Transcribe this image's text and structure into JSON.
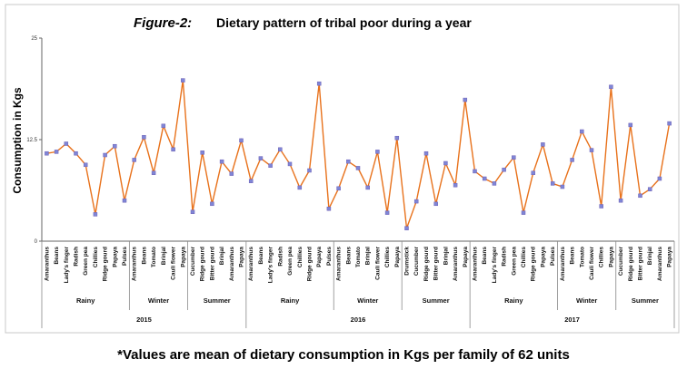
{
  "figure_label": "Figure-2:",
  "title": "Dietary pattern of tribal poor during a year",
  "footnote": "*Values are mean of dietary consumption in Kgs per family of 62 units",
  "colors": {
    "line": "#e8721c",
    "marker": "#7f86d6"
  },
  "chart_data": {
    "type": "line",
    "title": "Dietary pattern of tribal poor during a year",
    "ylabel": "Consumption in Kgs",
    "xlabel": "",
    "ylim": [
      0,
      25
    ],
    "yticks": [
      0,
      12.5,
      25
    ],
    "ytick_labels": [
      "0",
      "12.5",
      "25"
    ],
    "grid": false,
    "legend": "none",
    "years": [
      {
        "year": "2015",
        "seasons": [
          {
            "name": "Rainy",
            "items": [
              "Amaranthus",
              "Beans",
              "Lady's finger",
              "Radish",
              "Green pea",
              "Chillies",
              "Ridge gourd",
              "Papaya",
              "Pulses"
            ],
            "values": [
              10.8,
              11.0,
              12.0,
              10.8,
              9.4,
              3.3,
              10.6,
              11.7,
              5.0
            ]
          },
          {
            "name": "Winter",
            "items": [
              "Amaranthus",
              "Beans",
              "Tomato",
              "Brinjal",
              "Cauli flower",
              "Papaya"
            ],
            "values": [
              10.0,
              12.8,
              8.4,
              14.2,
              11.3,
              19.8
            ]
          },
          {
            "name": "Summer",
            "items": [
              "Cucumber",
              "Ridge gourd",
              "Bitter gourd",
              "Brinjal",
              "Amaranthus",
              "Papaya"
            ],
            "values": [
              3.6,
              10.9,
              4.6,
              9.8,
              8.3,
              12.4
            ]
          }
        ]
      },
      {
        "year": "2016",
        "seasons": [
          {
            "name": "Rainy",
            "items": [
              "Amaranthus",
              "Beans",
              "Lady's finger",
              "Radish",
              "Green pea",
              "Chillies",
              "Ridge gourd",
              "Papaya",
              "Pulses"
            ],
            "values": [
              7.4,
              10.2,
              9.3,
              11.3,
              9.5,
              6.6,
              8.7,
              19.4,
              4.0
            ]
          },
          {
            "name": "Winter",
            "items": [
              "Amaranthus",
              "Beans",
              "Tomato",
              "Brinjal",
              "Cauli flower",
              "Chillies",
              "Papaya"
            ],
            "values": [
              6.5,
              9.8,
              9.0,
              6.6,
              11.0,
              3.5,
              12.7
            ]
          },
          {
            "name": "Summer",
            "items": [
              "Drumstick",
              "Cucumber",
              "Ridge gourd",
              "Bitter gourd",
              "Brinjal",
              "Amaranthus",
              "Papaya"
            ],
            "values": [
              1.6,
              4.9,
              10.8,
              4.6,
              9.6,
              6.9,
              17.4
            ]
          }
        ]
      },
      {
        "year": "2017",
        "seasons": [
          {
            "name": "Rainy",
            "items": [
              "Amaranthus",
              "Beans",
              "Lady's finger",
              "Radish",
              "Green pea",
              "Chillies",
              "Ridge gourd",
              "Papaya",
              "Pulses"
            ],
            "values": [
              8.6,
              7.7,
              7.1,
              8.8,
              10.3,
              3.5,
              8.4,
              11.9,
              7.1
            ]
          },
          {
            "name": "Winter",
            "items": [
              "Amaranthus",
              "Beans",
              "Tomato",
              "Cauli flower",
              "Chillies",
              "Papaya"
            ],
            "values": [
              6.7,
              10.0,
              13.5,
              11.2,
              4.3,
              19.0
            ]
          },
          {
            "name": "Summer",
            "items": [
              "Cucumber",
              "Ridge gourd",
              "Bitter gourd",
              "Brinjal",
              "Amaranthus",
              "Papaya"
            ],
            "values": [
              5.0,
              14.3,
              5.6,
              6.4,
              7.7,
              14.5
            ]
          }
        ]
      }
    ]
  }
}
